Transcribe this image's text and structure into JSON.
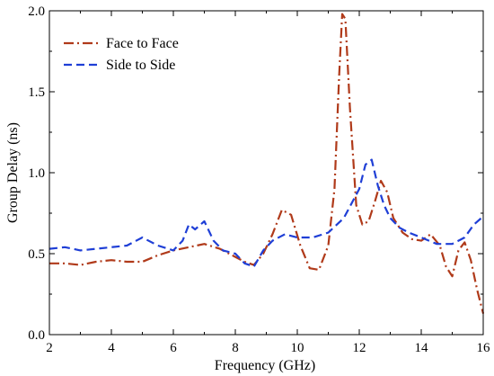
{
  "chart_data": {
    "type": "line",
    "title": "",
    "xlabel": "Frequency (GHz)",
    "ylabel": "Group Delay (ns)",
    "xlim": [
      2,
      16
    ],
    "ylim": [
      0.0,
      2.0
    ],
    "xticks": [
      2,
      4,
      6,
      8,
      10,
      12,
      14,
      16
    ],
    "xtick_labels": [
      "2",
      "4",
      "6",
      "8",
      "10",
      "12",
      "14",
      "16"
    ],
    "yticks": [
      0.0,
      0.5,
      1.0,
      1.5,
      2.0
    ],
    "ytick_labels": [
      "0.0",
      "0.5",
      "1.0",
      "1.5",
      "2.0"
    ],
    "grid": false,
    "legend_position": "top-left",
    "series": [
      {
        "name": "Face to Face",
        "color": "#b03a1a",
        "dash": "dash-dot",
        "x": [
          2.0,
          2.5,
          3.0,
          3.5,
          4.0,
          4.5,
          5.0,
          5.5,
          6.0,
          6.5,
          7.0,
          7.5,
          8.0,
          8.3,
          8.6,
          8.9,
          9.2,
          9.5,
          9.8,
          10.1,
          10.4,
          10.7,
          11.0,
          11.2,
          11.35,
          11.45,
          11.55,
          11.7,
          11.9,
          12.1,
          12.3,
          12.5,
          12.7,
          12.9,
          13.1,
          13.4,
          13.7,
          14.0,
          14.3,
          14.6,
          14.8,
          15.0,
          15.2,
          15.4,
          15.6,
          15.8,
          16.0
        ],
        "y": [
          0.44,
          0.44,
          0.43,
          0.45,
          0.46,
          0.45,
          0.45,
          0.49,
          0.52,
          0.54,
          0.56,
          0.53,
          0.48,
          0.45,
          0.43,
          0.5,
          0.62,
          0.77,
          0.74,
          0.55,
          0.41,
          0.4,
          0.55,
          0.9,
          1.6,
          1.98,
          1.95,
          1.4,
          0.8,
          0.68,
          0.7,
          0.82,
          0.95,
          0.88,
          0.72,
          0.63,
          0.59,
          0.58,
          0.62,
          0.55,
          0.42,
          0.36,
          0.52,
          0.57,
          0.46,
          0.28,
          0.13
        ]
      },
      {
        "name": "Side to Side",
        "color": "#1f3fd6",
        "dash": "dash",
        "x": [
          2.0,
          2.5,
          3.0,
          3.5,
          4.0,
          4.5,
          5.0,
          5.5,
          6.0,
          6.3,
          6.5,
          6.7,
          7.0,
          7.3,
          7.6,
          8.0,
          8.3,
          8.6,
          8.9,
          9.2,
          9.6,
          10.0,
          10.5,
          11.0,
          11.5,
          12.0,
          12.2,
          12.4,
          12.6,
          12.8,
          13.0,
          13.3,
          13.6,
          14.0,
          14.5,
          15.0,
          15.4,
          15.7,
          16.0
        ],
        "y": [
          0.53,
          0.54,
          0.52,
          0.53,
          0.54,
          0.55,
          0.6,
          0.55,
          0.52,
          0.58,
          0.68,
          0.65,
          0.7,
          0.58,
          0.52,
          0.5,
          0.44,
          0.42,
          0.52,
          0.58,
          0.62,
          0.6,
          0.6,
          0.63,
          0.72,
          0.9,
          1.05,
          1.08,
          0.92,
          0.8,
          0.72,
          0.66,
          0.63,
          0.6,
          0.56,
          0.56,
          0.6,
          0.68,
          0.73
        ]
      }
    ]
  }
}
